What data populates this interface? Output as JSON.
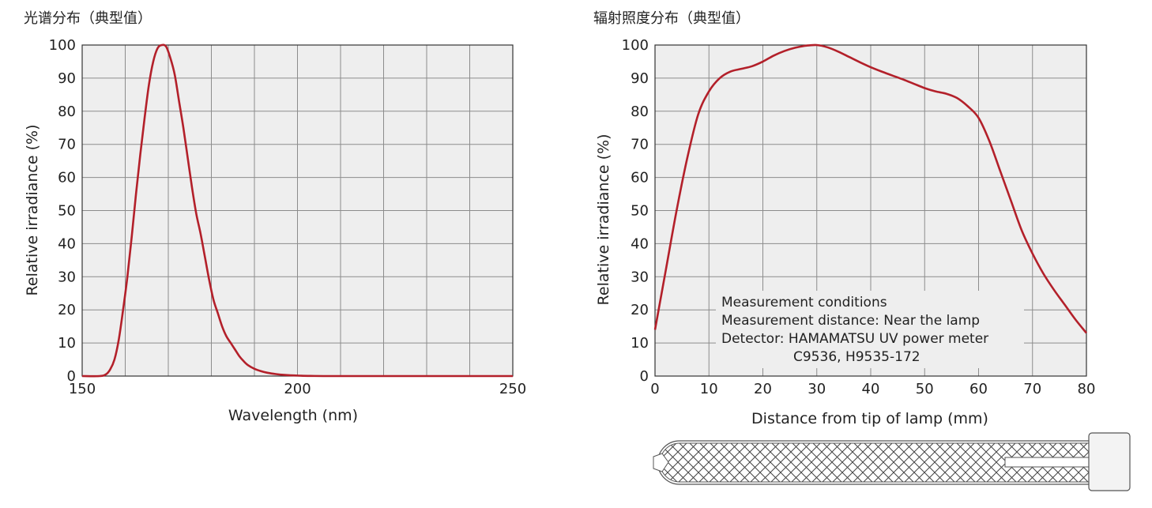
{
  "colors": {
    "curve": "#b3202a",
    "plot_bg": "#eeeeee",
    "grid": "#8c8c8c",
    "frame": "#333333",
    "lamp_stroke": "#555555"
  },
  "chart_data": [
    {
      "type": "line",
      "title": "光谱分布（典型值）",
      "xlabel": "Wavelength (nm)",
      "ylabel": "Relative irradiance (%)",
      "xlim": [
        150,
        250
      ],
      "ylim": [
        0,
        100
      ],
      "x_ticks": [
        150,
        200,
        250
      ],
      "x_grid_step": 10,
      "y_ticks": [
        0,
        10,
        20,
        30,
        40,
        50,
        60,
        70,
        80,
        90,
        100
      ],
      "grid": true,
      "series": [
        {
          "x": [
            150,
            154,
            155.5,
            156.5,
            157.5,
            158.5,
            159.5,
            160.5,
            161.5,
            162.5,
            163.5,
            164.5,
            165.5,
            166.5,
            167.5,
            168.5,
            169.5,
            170.5,
            171.5,
            172.5,
            173.5,
            174.5,
            175.5,
            176.5,
            177.5,
            178.5,
            179.5,
            180.5,
            181.5,
            182.5,
            183.5,
            184.5,
            185.5,
            186.5,
            187.5,
            188.5,
            190,
            191.5,
            193,
            195,
            197,
            200,
            203,
            206,
            210,
            215,
            220,
            230,
            240,
            250
          ],
          "y": [
            0,
            0,
            0.5,
            2,
            5,
            11,
            20,
            30,
            42,
            55,
            67,
            78,
            88,
            95,
            99,
            100,
            99.5,
            96,
            91,
            83,
            75,
            66,
            57,
            49,
            43,
            36,
            29,
            23,
            19,
            15,
            12,
            10,
            8,
            6,
            4.5,
            3.3,
            2.2,
            1.5,
            1,
            0.6,
            0.35,
            0.15,
            0.05,
            0,
            0,
            0,
            0,
            0,
            0,
            0
          ]
        }
      ]
    },
    {
      "type": "line",
      "title": "辐射照度分布（典型值）",
      "xlabel": "Distance from tip of lamp (mm)",
      "ylabel": "Relative irradiance (%)",
      "xlim": [
        0,
        80
      ],
      "ylim": [
        0,
        100
      ],
      "x_ticks": [
        0,
        10,
        20,
        30,
        40,
        50,
        60,
        70,
        80
      ],
      "y_ticks": [
        0,
        10,
        20,
        30,
        40,
        50,
        60,
        70,
        80,
        90,
        100
      ],
      "grid": true,
      "annotation": [
        "Measurement conditions",
        "Measurement distance: Near the lamp",
        "Detector: HAMAMATSU UV power meter",
        "C9536, H9535-172"
      ],
      "series": [
        {
          "x": [
            0,
            2,
            4,
            6,
            8,
            10,
            12,
            14,
            16,
            18,
            20,
            22,
            24,
            26,
            28,
            30,
            32,
            34,
            36,
            38,
            40,
            42,
            44,
            46,
            48,
            50,
            52,
            54,
            56,
            58,
            60,
            62,
            64,
            66,
            68,
            70,
            72,
            74,
            76,
            78,
            80
          ],
          "y": [
            14,
            32,
            50,
            66,
            79,
            86,
            90,
            92,
            92.8,
            93.6,
            95,
            96.8,
            98.2,
            99.2,
            99.8,
            100,
            99.3,
            98,
            96.4,
            94.8,
            93.3,
            92,
            90.8,
            89.6,
            88.3,
            87,
            86,
            85.3,
            84,
            81.5,
            78,
            71,
            62,
            53,
            44,
            37,
            31,
            26,
            21.5,
            17,
            13
          ]
        }
      ]
    }
  ]
}
